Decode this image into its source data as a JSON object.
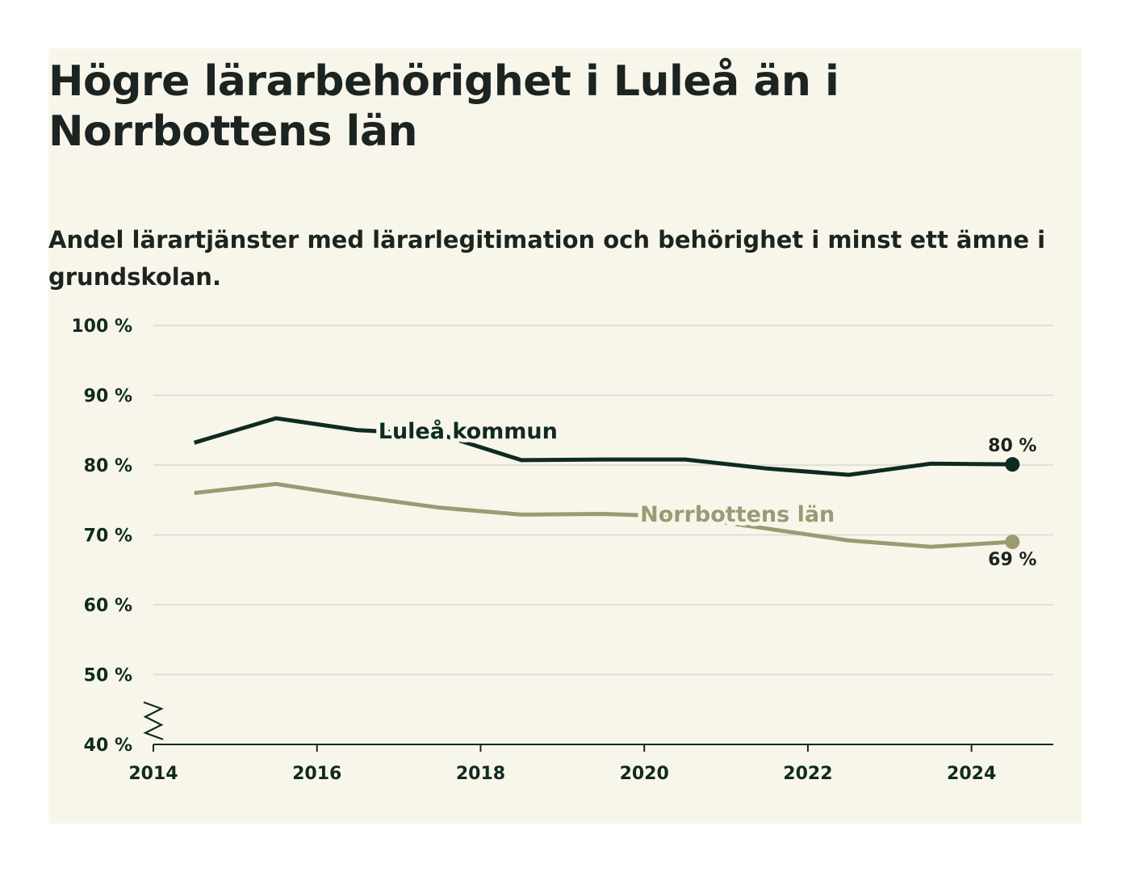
{
  "chart_data": {
    "type": "line",
    "title": "Högre lärarbehörighet i Luleå än i Norrbottens län",
    "subtitle": "Andel lärartjänster med lärarlegitimation och behörighet i minst ett ämne i grundskolan.",
    "xlabel": "",
    "ylabel": "",
    "xlim": [
      2014,
      2025
    ],
    "ylim": [
      40,
      100
    ],
    "x_ticks": [
      2014,
      2016,
      2018,
      2020,
      2022,
      2024
    ],
    "y_ticks": [
      {
        "value": 40,
        "label": "40 %"
      },
      {
        "value": 50,
        "label": "50 %"
      },
      {
        "value": 60,
        "label": "60 %"
      },
      {
        "value": 70,
        "label": "70 %"
      },
      {
        "value": 80,
        "label": "80 %"
      },
      {
        "value": 90,
        "label": "90 %"
      },
      {
        "value": 100,
        "label": "100 %"
      }
    ],
    "grid": true,
    "axis_break": true,
    "x": [
      2014.5,
      2015.5,
      2016.5,
      2017.5,
      2018.5,
      2019.5,
      2020.5,
      2021.5,
      2022.5,
      2023.5,
      2024.5
    ],
    "series": [
      {
        "name": "Luleå kommun",
        "color": "#0f2a22",
        "values": [
          83.2,
          86.7,
          85.0,
          84.4,
          80.7,
          80.8,
          80.8,
          79.5,
          78.6,
          80.2,
          80.1
        ],
        "end_label": "80 %",
        "label_position": {
          "x": 2016.75,
          "y": 83.8
        }
      },
      {
        "name": "Norrbottens län",
        "color": "#9c9a74",
        "values": [
          76.0,
          77.3,
          75.5,
          73.9,
          72.9,
          73.0,
          72.6,
          70.9,
          69.2,
          68.3,
          69.0
        ],
        "end_label": "69 %",
        "label_position": {
          "x": 2019.95,
          "y": 71.9
        }
      }
    ]
  }
}
